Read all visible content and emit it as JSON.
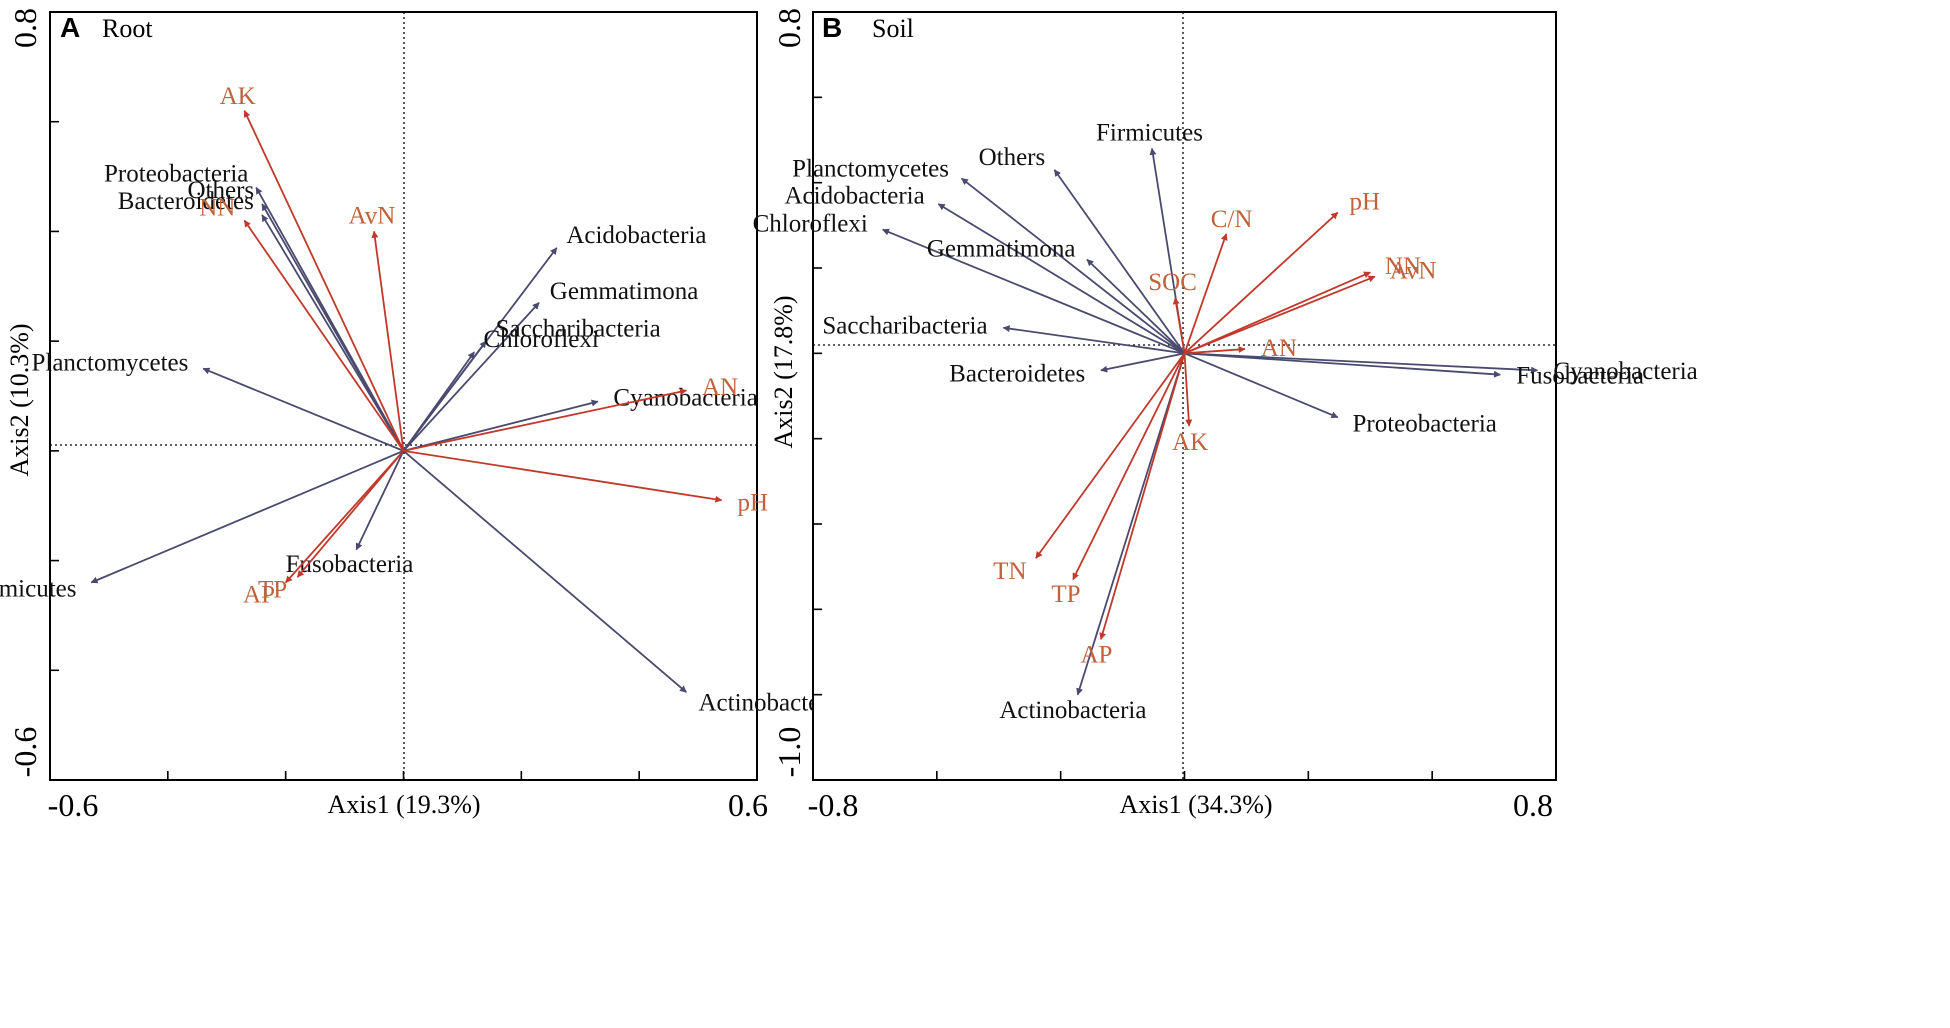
{
  "chart_data": [
    {
      "type": "biplot",
      "panel_letter": "A",
      "title": "Root",
      "xlabel": "Axis1 (19.3%)",
      "ylabel": "Axis2 (10.3%)",
      "xlim": [
        -0.6,
        0.6
      ],
      "ylim": [
        -0.6,
        0.8
      ],
      "x_tick_labels": [
        "-0.6",
        "0.6"
      ],
      "y_tick_labels": [
        "0.8",
        "-0.6"
      ],
      "colors": {
        "taxa": "#4a4a6e",
        "env": "#c0392b",
        "env_label": "#c0623b"
      },
      "taxa": [
        {
          "name": "Proteobacteria",
          "x": -0.25,
          "y": 0.48
        },
        {
          "name": "Others",
          "x": -0.24,
          "y": 0.45
        },
        {
          "name": "Bacteroidetes",
          "x": -0.24,
          "y": 0.43
        },
        {
          "name": "Acidobacteria",
          "x": 0.26,
          "y": 0.37
        },
        {
          "name": "Gemmatimona",
          "x": 0.23,
          "y": 0.27
        },
        {
          "name": "Saccharibacteria",
          "x": 0.14,
          "y": 0.2
        },
        {
          "name": "Chloroflexi",
          "x": 0.12,
          "y": 0.18
        },
        {
          "name": "Planctomycetes",
          "x": -0.34,
          "y": 0.15
        },
        {
          "name": "Cyanobacteria",
          "x": 0.33,
          "y": 0.09
        },
        {
          "name": "Fusobacteria",
          "x": -0.08,
          "y": -0.18
        },
        {
          "name": "Firmicutes",
          "x": -0.53,
          "y": -0.24
        },
        {
          "name": "Actinobacteria",
          "x": 0.48,
          "y": -0.44
        }
      ],
      "env": [
        {
          "name": "AK",
          "x": -0.27,
          "y": 0.62
        },
        {
          "name": "AvN",
          "x": -0.05,
          "y": 0.4
        },
        {
          "name": "NN",
          "x": -0.27,
          "y": 0.42
        },
        {
          "name": "AN",
          "x": 0.48,
          "y": 0.11
        },
        {
          "name": "pH",
          "x": 0.54,
          "y": -0.09
        },
        {
          "name": "AP",
          "x": -0.2,
          "y": -0.24
        },
        {
          "name": "TP",
          "x": -0.18,
          "y": -0.23
        }
      ]
    },
    {
      "type": "biplot",
      "panel_letter": "B",
      "title": "Soil",
      "xlabel": "Axis1 (34.3%)",
      "ylabel": "Axis2 (17.8%)",
      "xlim": [
        -0.8,
        0.8
      ],
      "ylim": [
        -1.0,
        0.8
      ],
      "x_tick_labels": [
        "-0.8",
        "0.8"
      ],
      "y_tick_labels": [
        "0.8",
        "-1.0"
      ],
      "colors": {
        "taxa": "#4a4a6e",
        "env": "#c0392b",
        "env_label": "#c0623b"
      },
      "taxa": [
        {
          "name": "Firmicutes",
          "x": -0.07,
          "y": 0.48
        },
        {
          "name": "Others",
          "x": -0.28,
          "y": 0.43
        },
        {
          "name": "Planctomycetes",
          "x": -0.48,
          "y": 0.41
        },
        {
          "name": "Acidobacteria",
          "x": -0.53,
          "y": 0.35
        },
        {
          "name": "Chloroflexi",
          "x": -0.65,
          "y": 0.29
        },
        {
          "name": "Gemmatimona",
          "x": -0.21,
          "y": 0.22
        },
        {
          "name": "Saccharibacteria",
          "x": -0.39,
          "y": 0.06
        },
        {
          "name": "Bacteroidetes",
          "x": -0.18,
          "y": -0.04
        },
        {
          "name": "Cyanobacteria",
          "x": 0.76,
          "y": -0.04
        },
        {
          "name": "Fusobacteria",
          "x": 0.68,
          "y": -0.05
        },
        {
          "name": "Proteobacteria",
          "x": 0.33,
          "y": -0.15
        },
        {
          "name": "Actinobacteria",
          "x": -0.23,
          "y": -0.8
        }
      ],
      "env": [
        {
          "name": "pH",
          "x": 0.33,
          "y": 0.33
        },
        {
          "name": "C/N",
          "x": 0.09,
          "y": 0.28
        },
        {
          "name": "NN",
          "x": 0.4,
          "y": 0.19
        },
        {
          "name": "AvN",
          "x": 0.41,
          "y": 0.18
        },
        {
          "name": "SOC",
          "x": -0.02,
          "y": 0.13
        },
        {
          "name": "AN",
          "x": 0.13,
          "y": 0.01
        },
        {
          "name": "AK",
          "x": 0.01,
          "y": -0.17
        },
        {
          "name": "TN",
          "x": -0.32,
          "y": -0.48
        },
        {
          "name": "TP",
          "x": -0.24,
          "y": -0.53
        },
        {
          "name": "AP",
          "x": -0.18,
          "y": -0.67
        }
      ]
    }
  ]
}
